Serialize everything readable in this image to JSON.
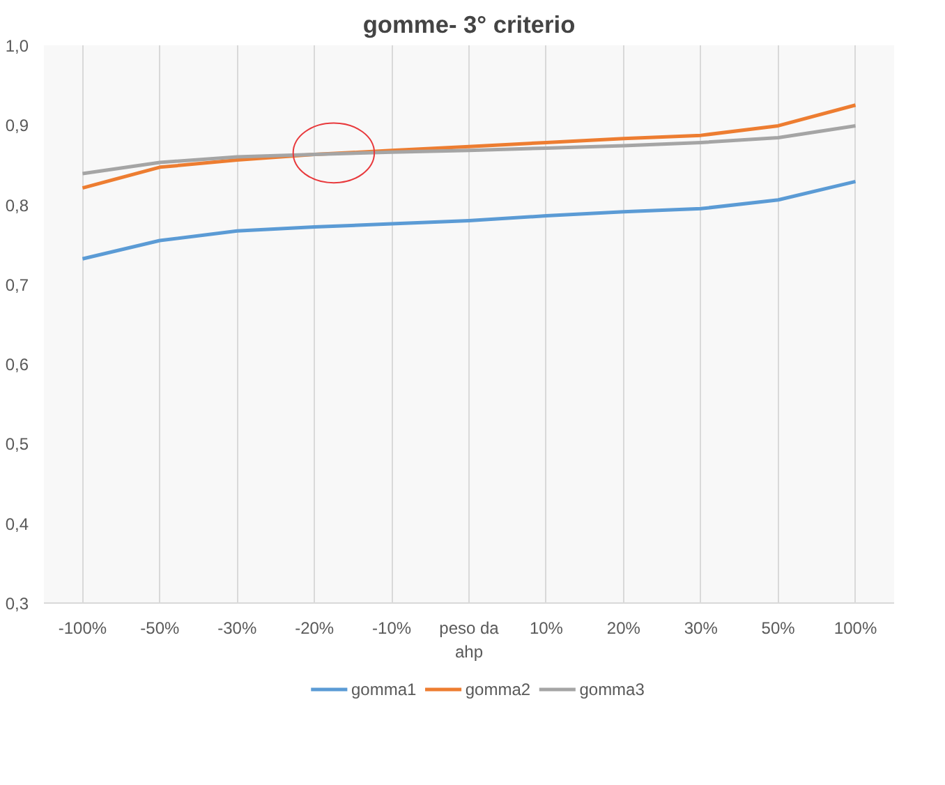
{
  "chart_data": {
    "type": "line",
    "title": "gomme- 3° criterio",
    "categories": [
      "-100%",
      "-50%",
      "-30%",
      "-20%",
      "-10%",
      "peso da ahp",
      "10%",
      "20%",
      "30%",
      "50%",
      "100%"
    ],
    "series": [
      {
        "name": "gomma1",
        "color": "#5b9bd5",
        "values": [
          0.732,
          0.755,
          0.767,
          0.772,
          0.776,
          0.78,
          0.786,
          0.791,
          0.795,
          0.806,
          0.829
        ]
      },
      {
        "name": "gomma2",
        "color": "#ed7d31",
        "values": [
          0.821,
          0.847,
          0.856,
          0.863,
          0.868,
          0.873,
          0.878,
          0.883,
          0.887,
          0.899,
          0.925
        ]
      },
      {
        "name": "gomma3",
        "color": "#a5a5a5",
        "values": [
          0.839,
          0.853,
          0.86,
          0.863,
          0.866,
          0.868,
          0.871,
          0.874,
          0.878,
          0.884,
          0.899
        ]
      }
    ],
    "ylim": [
      0.3,
      1.0
    ],
    "yticks": [
      {
        "value": 0.3,
        "label": "0,3"
      },
      {
        "value": 0.4,
        "label": "0,4"
      },
      {
        "value": 0.5,
        "label": "0,5"
      },
      {
        "value": 0.6,
        "label": "0,6"
      },
      {
        "value": 0.7,
        "label": "0,7"
      },
      {
        "value": 0.8,
        "label": "0,8"
      },
      {
        "value": 0.9,
        "label": "0,9"
      },
      {
        "value": 1.0,
        "label": "1,0"
      }
    ],
    "grid": "x",
    "legend": "bottom",
    "marker": "none",
    "line_style": "solid"
  }
}
